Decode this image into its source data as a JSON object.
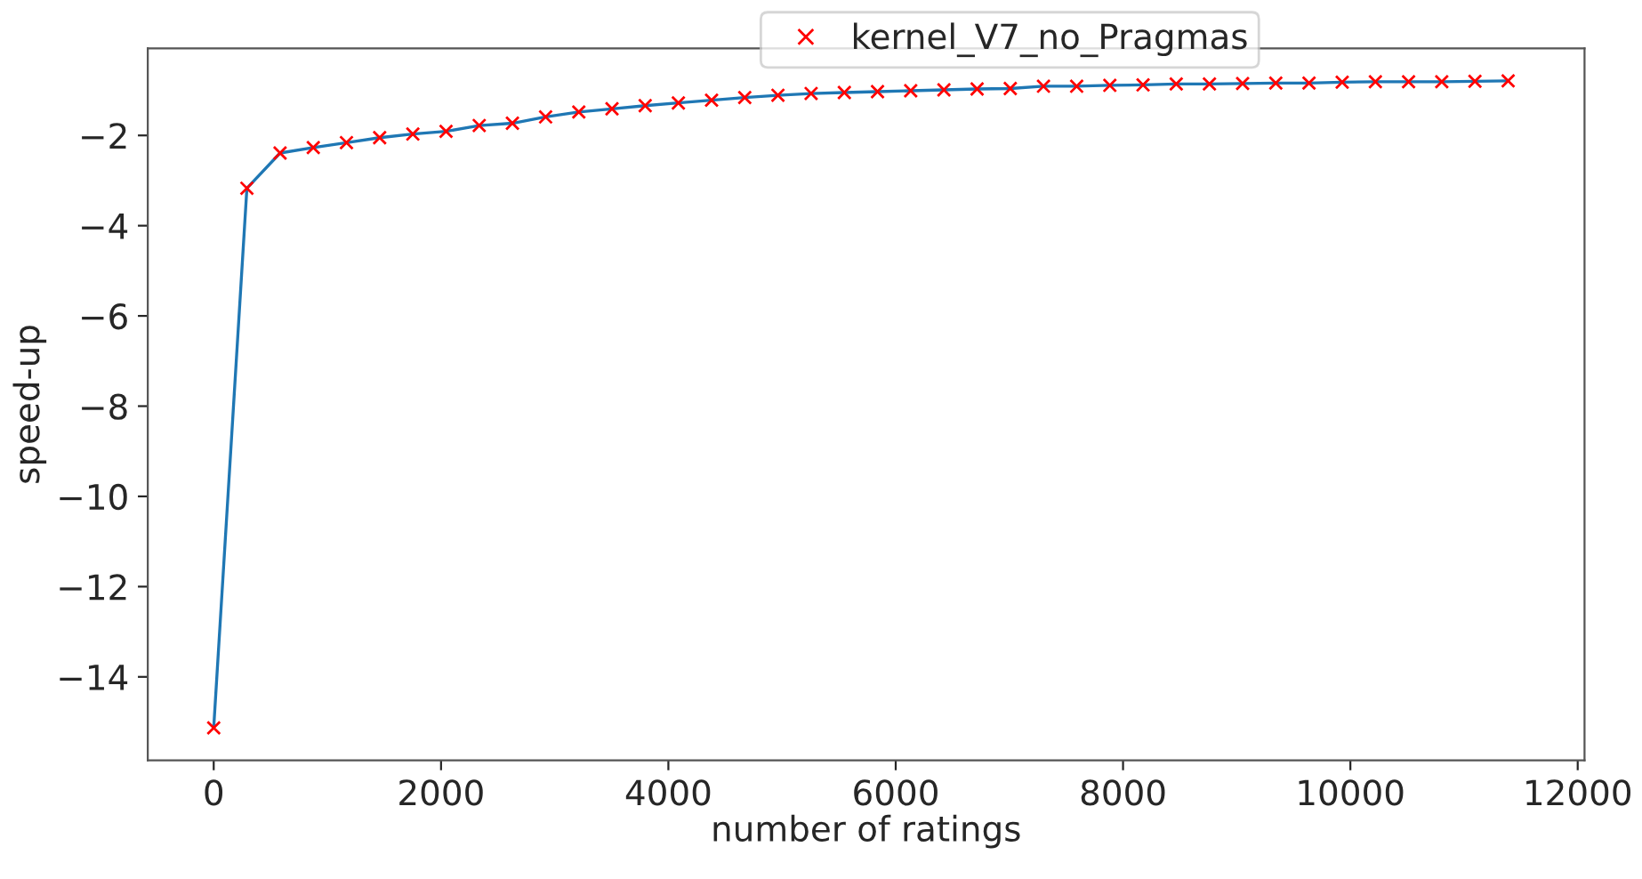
{
  "chart_data": {
    "type": "line",
    "xlabel": "number of ratings",
    "ylabel": "speed-up",
    "x": [
      0,
      292,
      584,
      876,
      1168,
      1460,
      1752,
      2044,
      2336,
      2628,
      2920,
      3212,
      3504,
      3796,
      4088,
      4380,
      4672,
      4964,
      5256,
      5548,
      5840,
      6132,
      6424,
      6716,
      7008,
      7300,
      7592,
      7884,
      8176,
      8468,
      8760,
      9052,
      9344,
      9636,
      9928,
      10220,
      10512,
      10804,
      11096,
      11388
    ],
    "series": [
      {
        "type": "line",
        "color": "#1f77b4",
        "marker": "none",
        "line_style": "solid",
        "values": [
          -15.13,
          -3.17,
          -2.39,
          -2.27,
          -2.16,
          -2.05,
          -1.97,
          -1.91,
          -1.78,
          -1.73,
          -1.59,
          -1.48,
          -1.41,
          -1.34,
          -1.28,
          -1.22,
          -1.16,
          -1.11,
          -1.07,
          -1.05,
          -1.03,
          -1.01,
          -0.99,
          -0.97,
          -0.96,
          -0.91,
          -0.91,
          -0.89,
          -0.88,
          -0.86,
          -0.86,
          -0.85,
          -0.84,
          -0.84,
          -0.82,
          -0.81,
          -0.81,
          -0.81,
          -0.8,
          -0.79
        ]
      },
      {
        "type": "scatter",
        "name": "kernel_V7_no_Pragmas",
        "color": "#ff0000",
        "marker": "cross",
        "values": [
          -15.13,
          -3.17,
          -2.39,
          -2.27,
          -2.16,
          -2.05,
          -1.97,
          -1.91,
          -1.78,
          -1.73,
          -1.59,
          -1.48,
          -1.41,
          -1.34,
          -1.28,
          -1.22,
          -1.16,
          -1.11,
          -1.07,
          -1.05,
          -1.03,
          -1.01,
          -0.99,
          -0.97,
          -0.96,
          -0.91,
          -0.91,
          -0.89,
          -0.88,
          -0.86,
          -0.86,
          -0.85,
          -0.84,
          -0.84,
          -0.82,
          -0.81,
          -0.81,
          -0.81,
          -0.8,
          -0.79
        ]
      }
    ],
    "xlim": [
      -580,
      12060
    ],
    "ylim": [
      -15.85,
      -0.07
    ],
    "xticks": [
      0,
      2000,
      4000,
      6000,
      8000,
      10000,
      12000
    ],
    "yticks": [
      {
        "value": -14,
        "label": "−14"
      },
      {
        "value": -12,
        "label": "−12"
      },
      {
        "value": -10,
        "label": "−10"
      },
      {
        "value": -8,
        "label": "−8"
      },
      {
        "value": -6,
        "label": "−6"
      },
      {
        "value": -4,
        "label": "−4"
      },
      {
        "value": -2,
        "label": "−2"
      }
    ],
    "grid": false,
    "legend": "top"
  }
}
